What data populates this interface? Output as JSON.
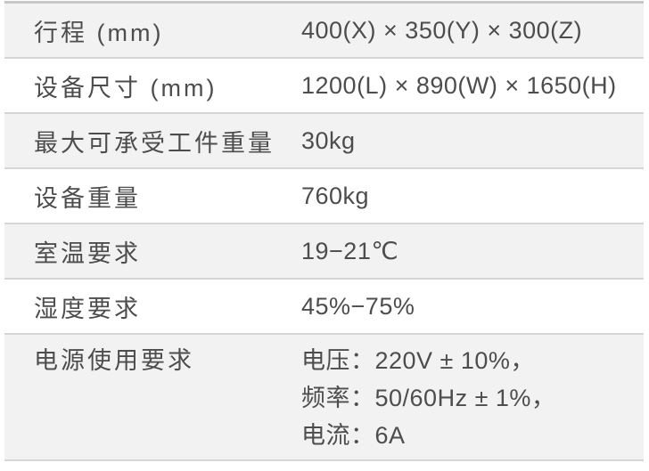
{
  "colors": {
    "page_bg": "#FFFFFF",
    "row_shade": "#F2F2F2",
    "divider": "#D5D5D5",
    "top_border": "#C7C7C7",
    "text": "#4D4D4D"
  },
  "table": {
    "rows": [
      {
        "label": "行程 (mm)",
        "value": "400(X) × 350(Y) × 300(Z)"
      },
      {
        "label": "设备尺寸 (mm)",
        "value": "1200(L) × 890(W) × 1650(H)"
      },
      {
        "label": "最大可承受工件重量",
        "value": "30kg"
      },
      {
        "label": "设备重量",
        "value": "760kg"
      },
      {
        "label": "室温要求",
        "value": "19−21℃"
      },
      {
        "label": "湿度要求",
        "value": "45%−75%"
      },
      {
        "label": "电源使用要求",
        "value_lines": [
          "电压：220V ± 10%，",
          "频率：50/60Hz ± 1%，",
          "电流：6A"
        ]
      }
    ]
  }
}
